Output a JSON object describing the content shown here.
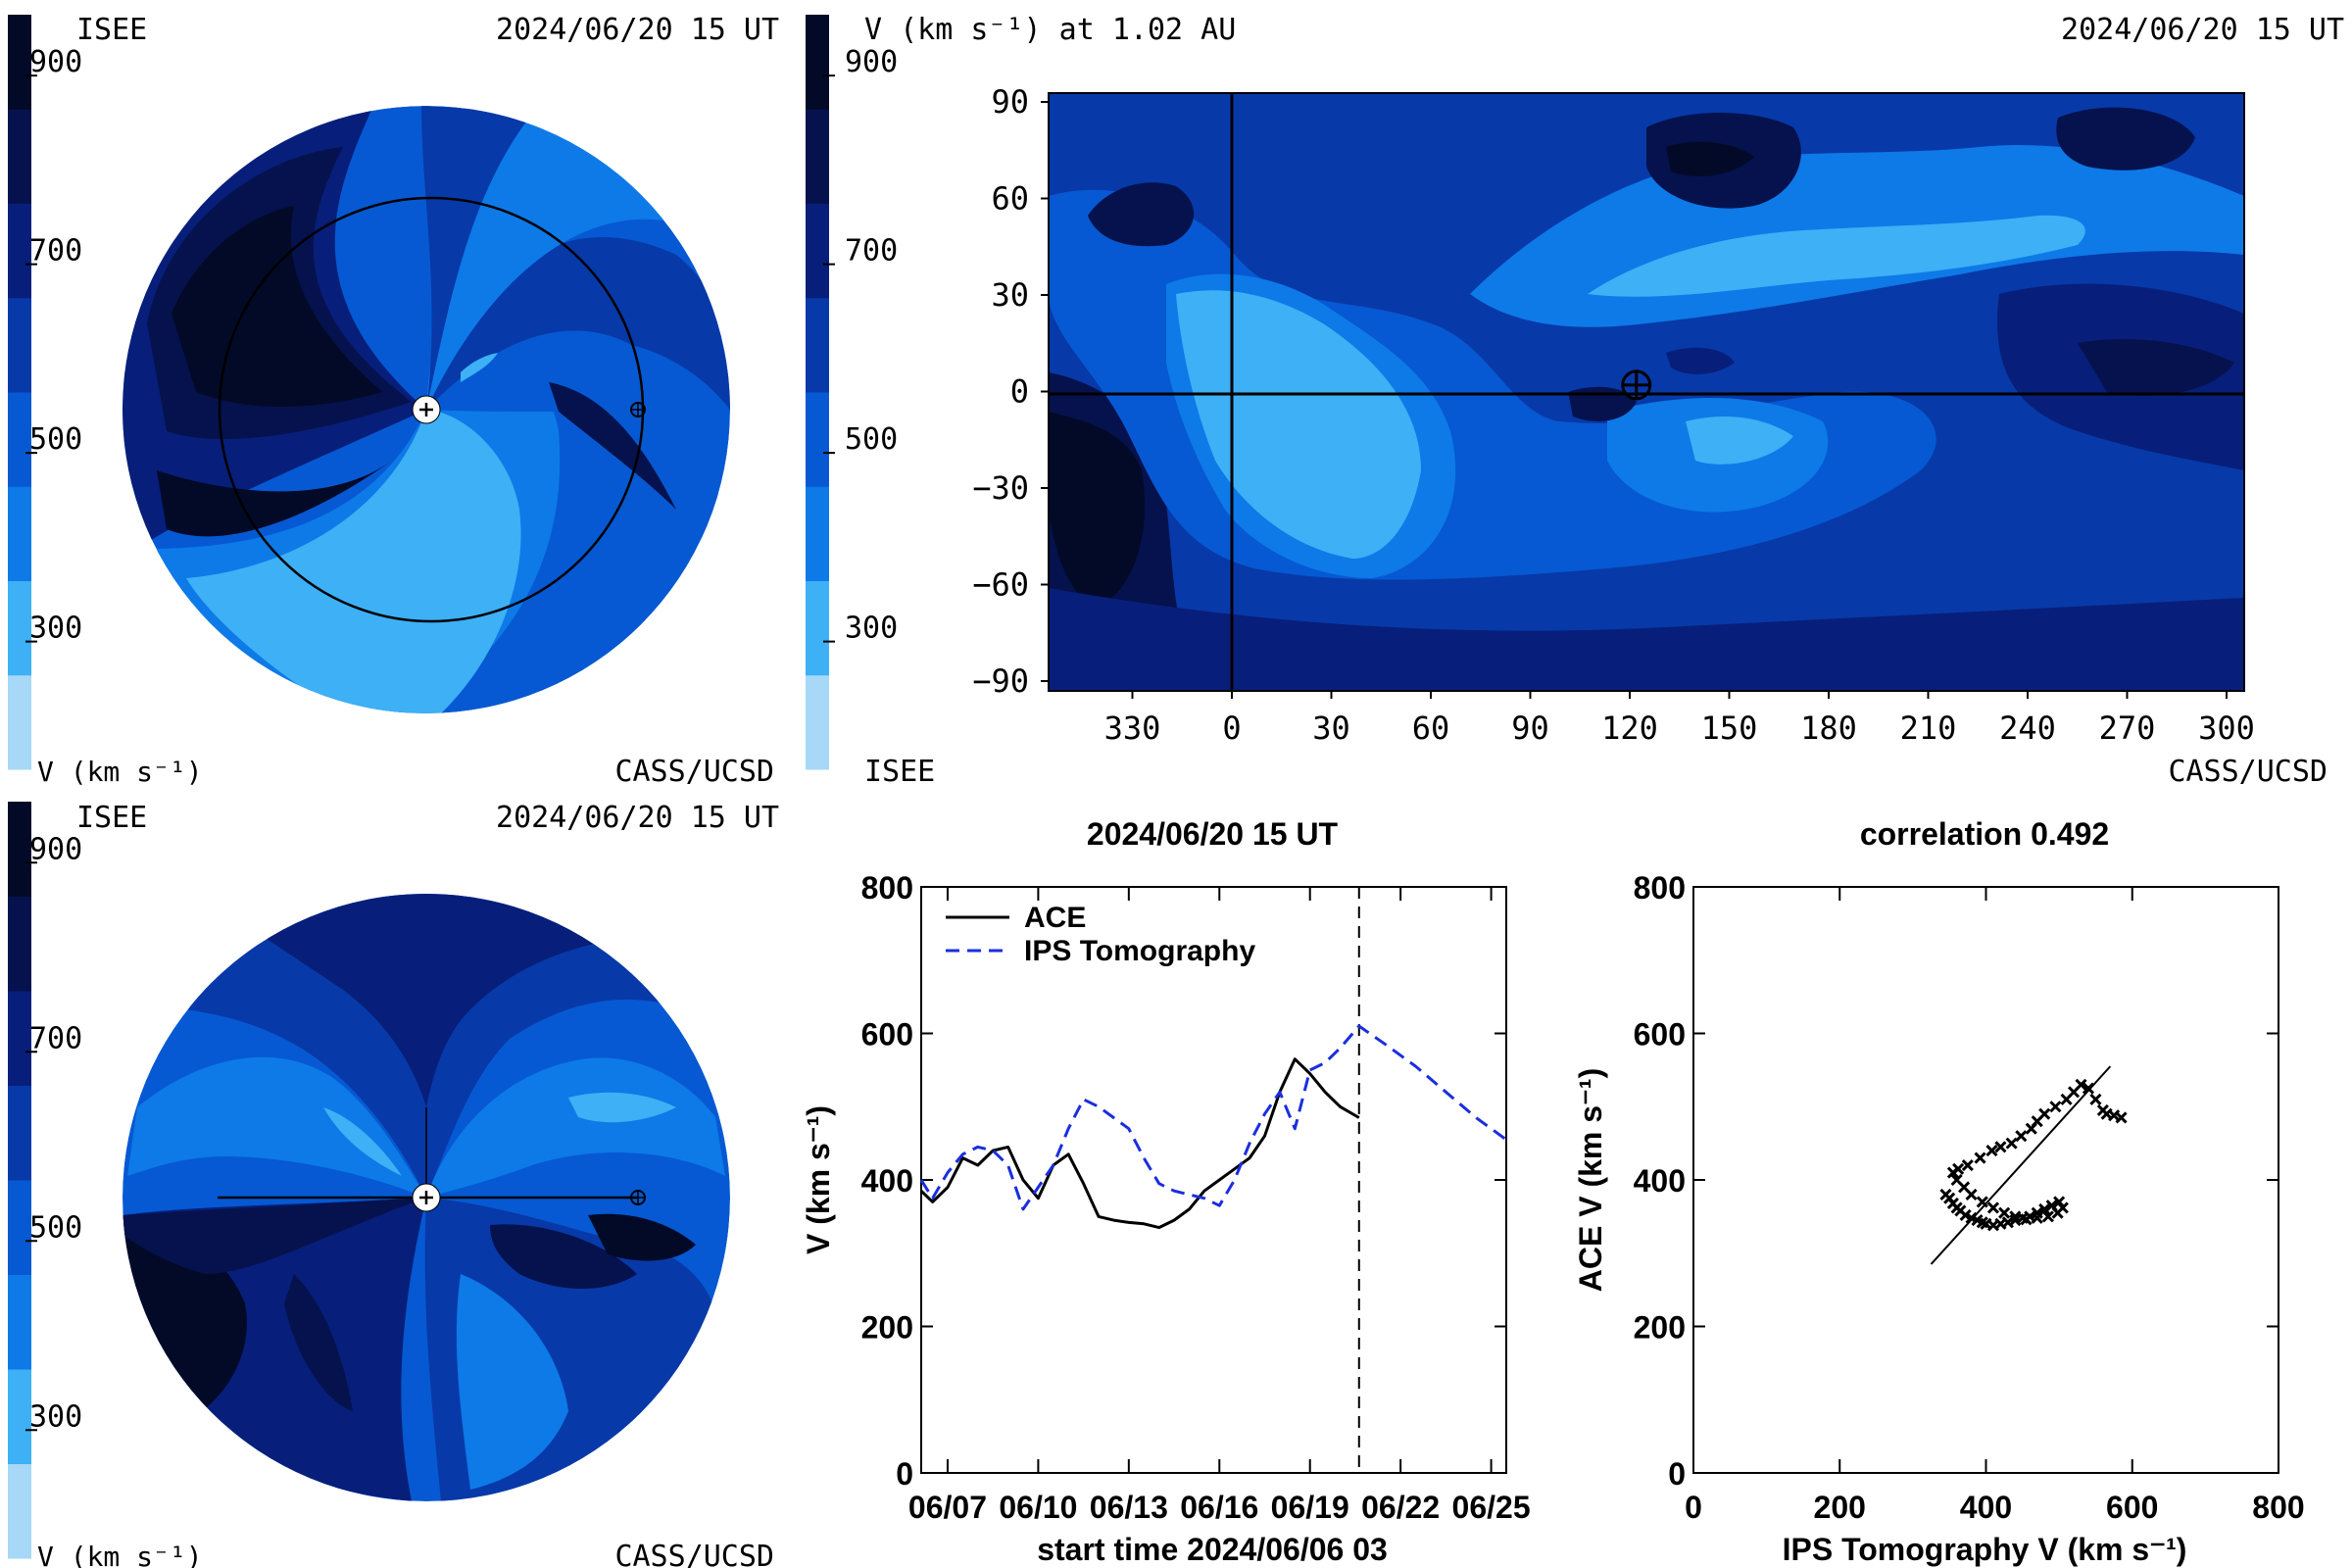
{
  "colors": {
    "bands": [
      "#a7d8f7",
      "#3db0f6",
      "#0d7ae8",
      "#0659d2",
      "#0839a8",
      "#071f7a",
      "#05124d",
      "#030a28"
    ],
    "ace": "#000000",
    "ips": "#1a2ee0"
  },
  "color_bar": {
    "ticks": [
      "900",
      "700",
      "500",
      "300"
    ],
    "label": "V (km s⁻¹)"
  },
  "top_left_panel": {
    "org_label": "ISEE",
    "timestamp": "2024/06/20 15 UT",
    "credit": "CASS/UCSD",
    "bar_label": "V (km s⁻¹)"
  },
  "top_right_panel": {
    "title": "V (km s⁻¹) at 1.02 AU",
    "timestamp": "2024/06/20 15 UT",
    "org_label": "ISEE",
    "credit": "CASS/UCSD",
    "y_ticks": [
      "90",
      "60",
      "30",
      "0",
      "−30",
      "−60",
      "−90"
    ],
    "x_ticks": [
      "330",
      "0",
      "30",
      "60",
      "90",
      "120",
      "150",
      "180",
      "210",
      "240",
      "270",
      "300"
    ],
    "earth_marker": {
      "longitude": 122,
      "latitude": 2
    }
  },
  "bottom_left_panel": {
    "org_label": "ISEE",
    "timestamp": "2024/06/20 15 UT",
    "credit": "CASS/UCSD",
    "bar_label": "V (km s⁻¹)"
  },
  "chart_data": [
    {
      "type": "line",
      "title": "2024/06/20 15 UT",
      "xlabel": "start time 2024/06/06 03",
      "ylabel": "V (km s⁻¹)",
      "ylim": [
        0,
        800
      ],
      "xlim": [
        "2024-06-06T03",
        "2024-06-25T12"
      ],
      "x_tick_labels": [
        "06/07",
        "06/10",
        "06/13",
        "06/16",
        "06/19",
        "06/22",
        "06/25"
      ],
      "y_tick_labels": [
        "0",
        "200",
        "400",
        "600",
        "800"
      ],
      "now_marker": "2024-06-20T15",
      "legend_position": "top-left",
      "series": [
        {
          "name": "ACE",
          "style": "solid",
          "x": [
            "2024-06-06T03",
            "2024-06-06T12",
            "2024-06-07T00",
            "2024-06-07T12",
            "2024-06-08T00",
            "2024-06-08T12",
            "2024-06-09T00",
            "2024-06-09T12",
            "2024-06-10T00",
            "2024-06-10T12",
            "2024-06-11T00",
            "2024-06-11T12",
            "2024-06-12T00",
            "2024-06-12T12",
            "2024-06-13T00",
            "2024-06-13T12",
            "2024-06-14T00",
            "2024-06-14T12",
            "2024-06-15T00",
            "2024-06-15T12",
            "2024-06-16T00",
            "2024-06-16T12",
            "2024-06-17T00",
            "2024-06-17T12",
            "2024-06-18T00",
            "2024-06-18T12",
            "2024-06-19T00",
            "2024-06-19T12",
            "2024-06-20T00",
            "2024-06-20T15"
          ],
          "y": [
            385,
            370,
            390,
            430,
            420,
            440,
            445,
            400,
            375,
            420,
            435,
            395,
            350,
            345,
            342,
            340,
            335,
            345,
            360,
            385,
            400,
            415,
            430,
            460,
            520,
            565,
            545,
            520,
            500,
            485
          ]
        },
        {
          "name": "IPS Tomography",
          "style": "dashed",
          "x": [
            "2024-06-06T03",
            "2024-06-06T12",
            "2024-06-07T00",
            "2024-06-07T12",
            "2024-06-08T00",
            "2024-06-08T12",
            "2024-06-09T00",
            "2024-06-09T12",
            "2024-06-10T00",
            "2024-06-10T12",
            "2024-06-11T00",
            "2024-06-11T12",
            "2024-06-12T00",
            "2024-06-12T12",
            "2024-06-13T00",
            "2024-06-13T12",
            "2024-06-14T00",
            "2024-06-14T12",
            "2024-06-15T00",
            "2024-06-15T12",
            "2024-06-16T00",
            "2024-06-16T12",
            "2024-06-17T00",
            "2024-06-17T12",
            "2024-06-18T00",
            "2024-06-18T12",
            "2024-06-19T00",
            "2024-06-19T12",
            "2024-06-20T00",
            "2024-06-20T15",
            "2024-06-21T12",
            "2024-06-22T12",
            "2024-06-23T12",
            "2024-06-24T12",
            "2024-06-25T12"
          ],
          "y": [
            400,
            375,
            410,
            435,
            445,
            440,
            420,
            360,
            390,
            420,
            470,
            510,
            500,
            485,
            470,
            430,
            395,
            385,
            380,
            375,
            365,
            400,
            450,
            490,
            520,
            470,
            550,
            560,
            580,
            610,
            585,
            555,
            520,
            485,
            455
          ]
        }
      ]
    },
    {
      "type": "scatter",
      "title": "correlation 0.492",
      "xlabel": "IPS Tomography V (km s⁻¹)",
      "ylabel": "ACE V (km s⁻¹)",
      "xlim": [
        0,
        800
      ],
      "ylim": [
        0,
        800
      ],
      "x_tick_labels": [
        "0",
        "200",
        "400",
        "600",
        "800"
      ],
      "y_tick_labels": [
        "0",
        "200",
        "400",
        "600",
        "800"
      ],
      "fit_line": {
        "x": [
          325,
          570
        ],
        "y": [
          285,
          555
        ]
      },
      "points": {
        "x": [
          345,
          350,
          355,
          360,
          365,
          372,
          380,
          388,
          395,
          400,
          410,
          420,
          430,
          440,
          450,
          460,
          470,
          480,
          490,
          500,
          505,
          498,
          485,
          470,
          455,
          440,
          425,
          410,
          395,
          380,
          370,
          360,
          355,
          362,
          375,
          392,
          408,
          420,
          435,
          448,
          462,
          470,
          480,
          495,
          510,
          520,
          530,
          540,
          550,
          560,
          565,
          575,
          585
        ],
        "y": [
          380,
          375,
          368,
          362,
          358,
          352,
          348,
          345,
          342,
          340,
          338,
          340,
          342,
          345,
          348,
          350,
          355,
          360,
          365,
          370,
          362,
          355,
          350,
          348,
          346,
          350,
          355,
          362,
          370,
          380,
          390,
          400,
          410,
          415,
          420,
          430,
          440,
          445,
          450,
          460,
          470,
          480,
          490,
          500,
          510,
          520,
          530,
          525,
          510,
          495,
          490,
          488,
          485
        ]
      }
    }
  ]
}
